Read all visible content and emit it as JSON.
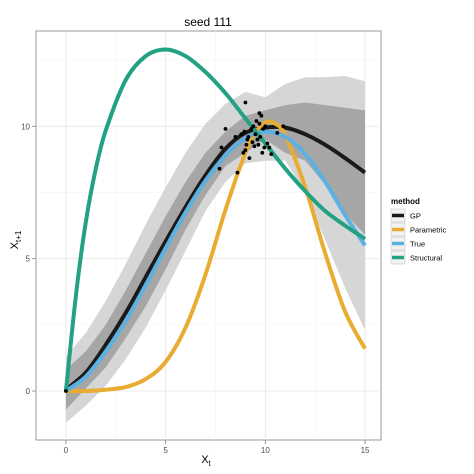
{
  "chart_data": {
    "type": "line",
    "title": "seed 111",
    "xlabel": "X",
    "xlabel_sub": "t",
    "ylabel": "X",
    "ylabel_sub": "t+1",
    "xlim": [
      -1.5,
      15.8
    ],
    "ylim": [
      -1.85,
      13.6
    ],
    "xticks": [
      0,
      5,
      10,
      15
    ],
    "yticks": [
      0,
      5,
      10
    ],
    "grid": true,
    "legend": {
      "title": "method",
      "position": "right",
      "entries": [
        {
          "name": "GP",
          "color": "#1a1a1a"
        },
        {
          "name": "Parametric",
          "color": "#e9ac32"
        },
        {
          "name": "True",
          "color": "#5bb2e2"
        },
        {
          "name": "Structural",
          "color": "#22a283"
        }
      ]
    },
    "bands": {
      "x": [
        0,
        1,
        2,
        3,
        4,
        5,
        6,
        7,
        8,
        9,
        10,
        11,
        12,
        13,
        14,
        15
      ],
      "outer_lower": [
        -1.2,
        -0.55,
        0.2,
        1.2,
        2.4,
        3.8,
        5.3,
        6.8,
        7.9,
        8.6,
        8.7,
        8.7,
        7.5,
        5.7,
        3.9,
        2.3
      ],
      "outer_upper": [
        1.3,
        2.2,
        3.4,
        4.8,
        6.3,
        7.7,
        9.0,
        10.1,
        10.85,
        11.3,
        11.1,
        11.6,
        11.85,
        11.85,
        11.9,
        11.7
      ],
      "inner_lower": [
        -0.7,
        0.1,
        0.9,
        2.0,
        3.2,
        4.6,
        6.1,
        7.4,
        8.5,
        9.0,
        9.5,
        9.0,
        8.7,
        7.8,
        6.7,
        5.9
      ],
      "inner_upper": [
        0.8,
        1.5,
        2.5,
        3.8,
        5.2,
        6.6,
        7.9,
        9.0,
        9.8,
        10.4,
        10.6,
        10.8,
        10.9,
        10.8,
        10.7,
        10.6
      ]
    },
    "series": [
      {
        "name": "GP",
        "color": "#1a1a1a",
        "x": [
          0,
          1,
          2,
          3,
          4,
          5,
          6,
          7,
          8,
          9,
          10,
          11,
          12,
          13,
          14,
          15
        ],
        "y": [
          0.05,
          0.7,
          1.75,
          2.95,
          4.3,
          5.65,
          6.95,
          8.15,
          9.15,
          9.75,
          9.95,
          9.95,
          9.7,
          9.3,
          8.8,
          8.25
        ]
      },
      {
        "name": "Parametric",
        "color": "#e9ac32",
        "x": [
          0,
          1,
          2,
          3,
          4,
          5,
          6,
          7,
          8,
          9,
          9.5,
          10,
          10.5,
          11,
          12,
          13,
          14,
          15
        ],
        "y": [
          0.0,
          0.0,
          0.05,
          0.15,
          0.45,
          1.1,
          2.4,
          4.4,
          6.85,
          9.0,
          9.75,
          10.15,
          10.1,
          9.65,
          7.7,
          5.2,
          3.0,
          1.6
        ]
      },
      {
        "name": "True",
        "color": "#5bb2e2",
        "x": [
          0,
          1,
          2,
          3,
          4,
          5,
          6,
          7,
          8,
          9,
          10,
          11,
          12,
          13,
          14,
          15
        ],
        "y": [
          0.0,
          0.55,
          1.5,
          2.65,
          4.0,
          5.4,
          6.75,
          7.95,
          8.9,
          9.55,
          9.8,
          9.6,
          8.95,
          7.9,
          6.65,
          5.5
        ]
      },
      {
        "name": "Structural",
        "color": "#22a283",
        "x": [
          0,
          0.5,
          1,
          1.5,
          2,
          3,
          4,
          5,
          6,
          7,
          8,
          9,
          10,
          11,
          12,
          13,
          14,
          15
        ],
        "y": [
          0.0,
          3.6,
          6.4,
          8.4,
          9.85,
          11.75,
          12.65,
          12.9,
          12.65,
          12.05,
          11.25,
          10.3,
          9.35,
          8.4,
          7.55,
          6.8,
          6.25,
          5.75
        ]
      }
    ],
    "points": {
      "x": [
        0,
        7.7,
        7.8,
        8.0,
        8.5,
        8.6,
        8.8,
        8.9,
        8.95,
        9.0,
        9.05,
        9.1,
        9.15,
        9.2,
        9.3,
        9.35,
        9.4,
        9.45,
        9.5,
        9.55,
        9.6,
        9.65,
        9.7,
        9.75,
        9.8,
        9.85,
        9.9,
        9.95,
        10.0,
        10.1,
        10.2,
        10.3,
        10.6,
        10.9,
        9.0,
        9.7
      ],
      "y": [
        0.0,
        8.4,
        9.2,
        9.9,
        9.6,
        8.25,
        9.7,
        9.0,
        9.8,
        10.9,
        9.3,
        9.5,
        9.6,
        8.8,
        9.9,
        9.4,
        10.0,
        9.25,
        9.7,
        10.2,
        9.5,
        9.3,
        10.1,
        9.6,
        10.4,
        9.0,
        9.9,
        9.2,
        10.0,
        9.35,
        9.2,
        8.95,
        9.75,
        10.0,
        9.1,
        10.5
      ]
    }
  }
}
